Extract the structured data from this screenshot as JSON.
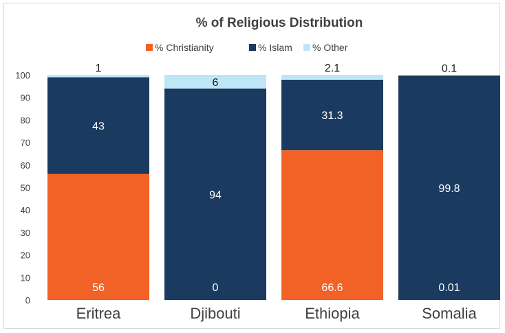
{
  "chart_data": {
    "type": "bar",
    "stacked": true,
    "title": "% of Religious Distribution",
    "categories": [
      "Eritrea",
      "Djibouti",
      "Ethiopia",
      "Somalia"
    ],
    "series": [
      {
        "name": "% Christianity",
        "color": "#f26125",
        "values": [
          56,
          0,
          66.6,
          0.01
        ],
        "labels": [
          "56",
          "0",
          "66.6",
          "0.01"
        ]
      },
      {
        "name": "% Islam",
        "color": "#1b3a5f",
        "values": [
          43,
          94,
          31.3,
          99.8
        ],
        "labels": [
          "43",
          "94",
          "31.3",
          "99.8"
        ]
      },
      {
        "name": "% Other",
        "color": "#bde6f7",
        "values": [
          1,
          6,
          2.1,
          0.1
        ],
        "labels": [
          "1",
          "6",
          "2.1",
          "0.1"
        ]
      }
    ],
    "ylim": [
      0,
      100
    ],
    "yticks": [
      "0",
      "10",
      "20",
      "30",
      "40",
      "50",
      "60",
      "70",
      "80",
      "90",
      "100"
    ],
    "grid": false,
    "legend_position": "top"
  }
}
